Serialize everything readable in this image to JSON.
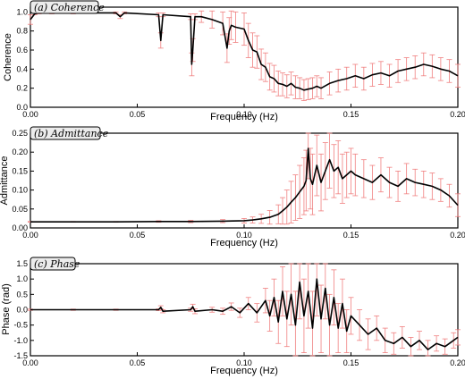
{
  "chart_data": [
    {
      "type": "line",
      "tag": "(a) Coherence",
      "xlabel": "Frequency (Hz)",
      "ylabel": "Coherence",
      "xlim": [
        0,
        0.2
      ],
      "ylim": [
        0,
        1.05
      ],
      "x_ticks": [
        "0.00",
        "0.05",
        "0.10",
        "0.15",
        "0.20"
      ],
      "y_ticks": [
        "0.0",
        "0.2",
        "0.4",
        "0.6",
        "0.8",
        "1.0"
      ],
      "line_color": "#000000",
      "errorbar_color": "#f08080",
      "grid": false,
      "series": [
        {
          "x": [
            0.0,
            0.002,
            0.004,
            0.01,
            0.02,
            0.04,
            0.042,
            0.044,
            0.06,
            0.061,
            0.062,
            0.075,
            0.0755,
            0.076,
            0.077,
            0.08,
            0.085,
            0.09,
            0.092,
            0.093,
            0.094,
            0.096,
            0.1,
            0.102,
            0.104,
            0.106,
            0.108,
            0.11,
            0.112,
            0.114,
            0.116,
            0.118,
            0.12,
            0.122,
            0.124,
            0.126,
            0.128,
            0.13,
            0.132,
            0.134,
            0.136,
            0.14,
            0.144,
            0.148,
            0.152,
            0.156,
            0.16,
            0.164,
            0.168,
            0.172,
            0.176,
            0.18,
            0.184,
            0.188,
            0.192,
            0.196,
            0.2
          ],
          "y": [
            0.92,
            0.98,
            0.99,
            0.99,
            0.99,
            0.99,
            0.95,
            0.99,
            0.97,
            0.7,
            0.97,
            0.95,
            0.45,
            0.6,
            0.95,
            0.95,
            0.92,
            0.88,
            0.62,
            0.8,
            0.86,
            0.84,
            0.82,
            0.7,
            0.6,
            0.58,
            0.45,
            0.42,
            0.32,
            0.3,
            0.25,
            0.24,
            0.22,
            0.25,
            0.21,
            0.2,
            0.18,
            0.19,
            0.2,
            0.22,
            0.2,
            0.25,
            0.28,
            0.3,
            0.33,
            0.3,
            0.34,
            0.36,
            0.33,
            0.38,
            0.4,
            0.42,
            0.45,
            0.43,
            0.4,
            0.38,
            0.33
          ],
          "err": [
            0.05,
            0.01,
            0.01,
            0.01,
            0.01,
            0.01,
            0.02,
            0.01,
            0.02,
            0.08,
            0.02,
            0.03,
            0.12,
            0.12,
            0.03,
            0.06,
            0.09,
            0.12,
            0.15,
            0.14,
            0.15,
            0.16,
            0.17,
            0.18,
            0.18,
            0.17,
            0.16,
            0.15,
            0.14,
            0.14,
            0.13,
            0.12,
            0.12,
            0.12,
            0.12,
            0.11,
            0.11,
            0.11,
            0.11,
            0.11,
            0.11,
            0.12,
            0.12,
            0.12,
            0.12,
            0.12,
            0.12,
            0.12,
            0.12,
            0.12,
            0.12,
            0.12,
            0.12,
            0.12,
            0.12,
            0.12,
            0.12
          ]
        }
      ]
    },
    {
      "type": "line",
      "tag": "(b) Admittance",
      "xlabel": "Frequency (Hz)",
      "ylabel": "Admittance",
      "xlim": [
        0,
        0.2
      ],
      "ylim": [
        0,
        0.25
      ],
      "x_ticks": [
        "0.00",
        "0.05",
        "0.10",
        "0.15",
        "0.20"
      ],
      "y_ticks": [
        "0.00",
        "0.05",
        "0.10",
        "0.15",
        "0.20",
        "0.25"
      ],
      "line_color": "#000000",
      "errorbar_color": "#f08080",
      "grid": false,
      "series": [
        {
          "x": [
            0.0,
            0.02,
            0.04,
            0.06,
            0.075,
            0.09,
            0.1,
            0.104,
            0.108,
            0.112,
            0.116,
            0.118,
            0.12,
            0.122,
            0.124,
            0.126,
            0.128,
            0.129,
            0.13,
            0.131,
            0.132,
            0.134,
            0.136,
            0.138,
            0.14,
            0.142,
            0.144,
            0.146,
            0.148,
            0.15,
            0.152,
            0.156,
            0.16,
            0.164,
            0.168,
            0.172,
            0.176,
            0.18,
            0.184,
            0.188,
            0.192,
            0.196,
            0.2
          ],
          "y": [
            0.016,
            0.016,
            0.016,
            0.017,
            0.017,
            0.018,
            0.019,
            0.021,
            0.024,
            0.028,
            0.036,
            0.045,
            0.055,
            0.068,
            0.08,
            0.095,
            0.11,
            0.125,
            0.21,
            0.13,
            0.115,
            0.165,
            0.12,
            0.15,
            0.18,
            0.15,
            0.16,
            0.13,
            0.14,
            0.15,
            0.14,
            0.13,
            0.12,
            0.14,
            0.12,
            0.11,
            0.13,
            0.12,
            0.115,
            0.11,
            0.1,
            0.085,
            0.06
          ],
          "err": [
            0.001,
            0.001,
            0.001,
            0.002,
            0.003,
            0.004,
            0.006,
            0.008,
            0.012,
            0.018,
            0.025,
            0.035,
            0.045,
            0.055,
            0.06,
            0.07,
            0.075,
            0.08,
            0.08,
            0.08,
            0.08,
            0.08,
            0.075,
            0.075,
            0.075,
            0.07,
            0.07,
            0.065,
            0.06,
            0.06,
            0.055,
            0.05,
            0.045,
            0.045,
            0.04,
            0.04,
            0.04,
            0.035,
            0.035,
            0.035,
            0.03,
            0.03,
            0.03
          ]
        }
      ]
    },
    {
      "type": "line",
      "tag": "(c) Phase",
      "xlabel": "Frequency (Hz)",
      "ylabel": "Phase (rad)",
      "xlim": [
        0,
        0.2
      ],
      "ylim": [
        -1.5,
        1.5
      ],
      "x_ticks": [
        "0.00",
        "0.05",
        "0.10",
        "0.15",
        "0.20"
      ],
      "y_ticks": [
        "-1.5",
        "-1.0",
        "-0.5",
        "0.0",
        "0.5",
        "1.0",
        "1.5"
      ],
      "line_color": "#000000",
      "errorbar_color": "#f08080",
      "grid": false,
      "series": [
        {
          "x": [
            0.0,
            0.02,
            0.04,
            0.06,
            0.061,
            0.062,
            0.075,
            0.076,
            0.077,
            0.085,
            0.09,
            0.094,
            0.098,
            0.102,
            0.106,
            0.11,
            0.112,
            0.114,
            0.116,
            0.118,
            0.12,
            0.122,
            0.124,
            0.126,
            0.128,
            0.13,
            0.132,
            0.134,
            0.136,
            0.138,
            0.14,
            0.142,
            0.144,
            0.146,
            0.148,
            0.15,
            0.154,
            0.158,
            0.162,
            0.166,
            0.17,
            0.174,
            0.178,
            0.182,
            0.186,
            0.19,
            0.194,
            0.198,
            0.2
          ],
          "y": [
            0.0,
            0.0,
            0.0,
            0.0,
            0.08,
            -0.05,
            0.0,
            0.1,
            -0.05,
            0.0,
            -0.05,
            0.1,
            -0.1,
            0.2,
            -0.1,
            0.3,
            -0.2,
            0.4,
            -0.4,
            0.6,
            -0.3,
            0.5,
            -0.5,
            0.9,
            -0.2,
            0.6,
            -0.6,
            1.0,
            -0.3,
            0.7,
            -0.5,
            0.4,
            -0.6,
            0.2,
            -0.7,
            -0.2,
            -0.5,
            -0.8,
            -0.6,
            -1.0,
            -1.1,
            -0.9,
            -1.2,
            -1.0,
            -1.3,
            -1.1,
            -1.2,
            -1.0,
            -0.9
          ],
          "err": [
            0.02,
            0.02,
            0.02,
            0.03,
            0.05,
            0.05,
            0.05,
            0.08,
            0.08,
            0.08,
            0.1,
            0.12,
            0.15,
            0.2,
            0.3,
            0.4,
            0.5,
            0.6,
            0.7,
            0.8,
            0.9,
            1.0,
            1.1,
            1.2,
            1.2,
            1.2,
            1.2,
            1.2,
            1.1,
            1.0,
            1.0,
            0.9,
            0.8,
            0.8,
            0.7,
            0.6,
            0.5,
            0.5,
            0.4,
            0.4,
            0.35,
            0.35,
            0.3,
            0.3,
            0.3,
            0.25,
            0.25,
            0.25,
            0.25
          ]
        }
      ]
    }
  ]
}
